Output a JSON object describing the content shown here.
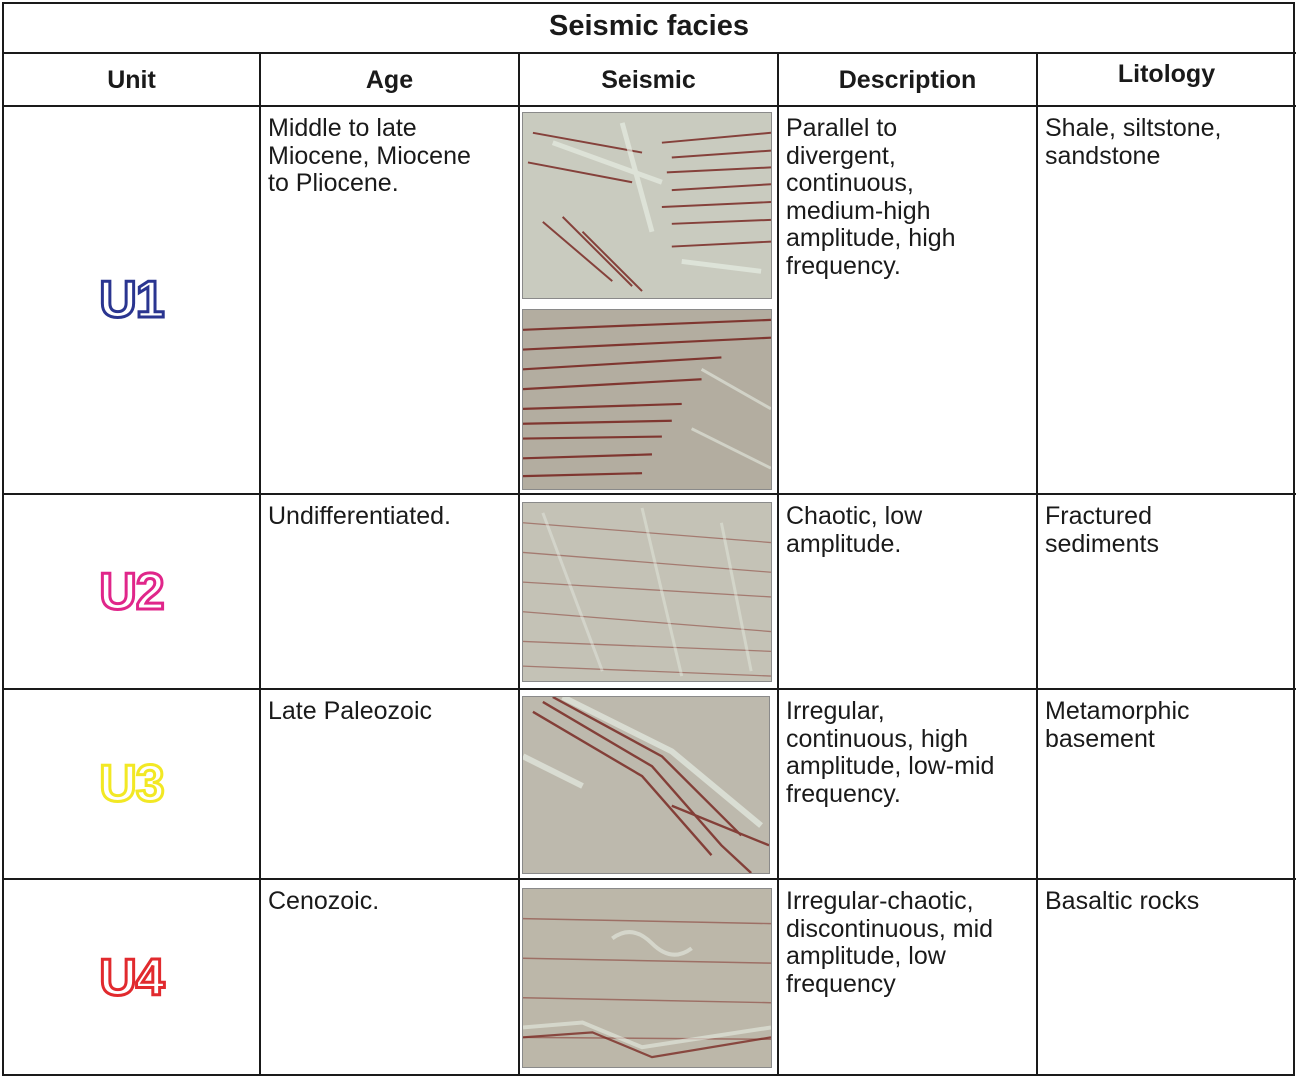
{
  "table": {
    "title": "Seismic facies",
    "headers": {
      "unit": "Unit",
      "age": "Age",
      "seismic": "Seismic",
      "description": "Description",
      "lithology": "Litology"
    },
    "rows": [
      {
        "unit": "U1",
        "unit_color": "#2a3590",
        "age": "Middle to late\nMiocene, Miocene\nto Pliocene.",
        "description": "Parallel to\ndivergent,\ncontinuous,\nmedium-high\namplitude, high\nfrequency.",
        "lithology": "Shale, siltstone,\nsandstone"
      },
      {
        "unit": "U2",
        "unit_color": "#e0268a",
        "age": "Undifferentiated.",
        "description": "Chaotic, low\namplitude.",
        "lithology": "Fractured\nsediments"
      },
      {
        "unit": "U3",
        "unit_color": "#f2e824",
        "age": "Late Paleozoic",
        "description": "Irregular,\ncontinuous, high\namplitude, low-mid\nfrequency.",
        "lithology": "Metamorphic\nbasement"
      },
      {
        "unit": "U4",
        "unit_color": "#e12a2e",
        "age": "Cenozoic.",
        "description": "Irregular-chaotic,\ndiscontinuous, mid\namplitude, low\nfrequency",
        "lithology": "Basaltic rocks"
      }
    ]
  }
}
